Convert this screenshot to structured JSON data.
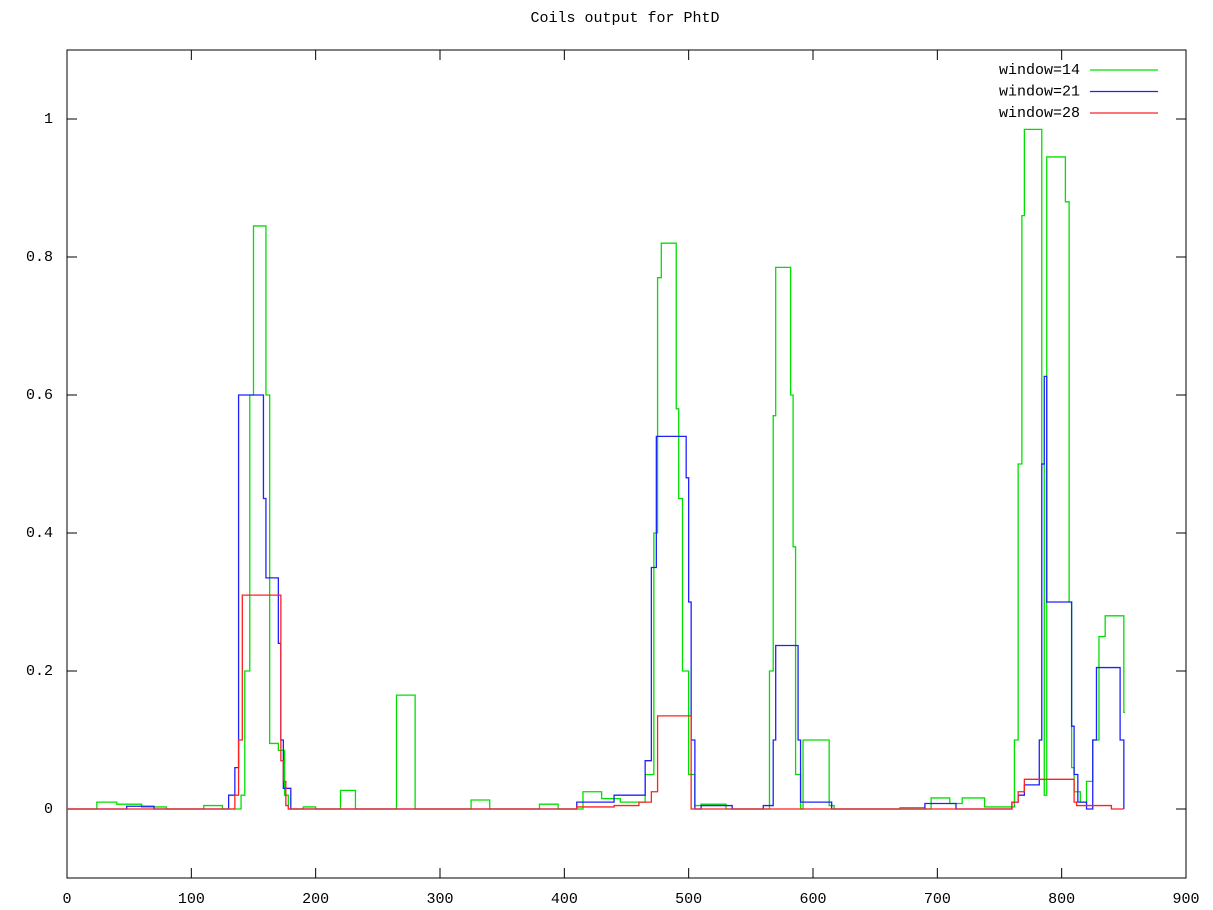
{
  "chart_data": {
    "type": "line",
    "title": "Coils output for PhtD",
    "step": "post",
    "xlim": [
      0,
      900
    ],
    "ylim": [
      -0.1,
      1.1
    ],
    "xticks": [
      0,
      100,
      200,
      300,
      400,
      500,
      600,
      700,
      800,
      900
    ],
    "yticks": [
      0,
      0.2,
      0.4,
      0.6,
      0.8,
      1
    ],
    "legend": "upper right",
    "series": [
      {
        "name": "window=14",
        "color": "#00e000",
        "x": [
          0,
          24,
          40,
          60,
          80,
          110,
          125,
          140,
          143,
          147,
          150,
          160,
          163,
          170,
          175,
          178,
          190,
          200,
          220,
          232,
          265,
          280,
          325,
          340,
          380,
          395,
          415,
          430,
          445,
          465,
          472,
          475,
          478,
          490,
          492,
          495,
          500,
          505,
          510,
          530,
          565,
          568,
          570,
          582,
          584,
          586,
          590,
          592,
          600,
          613,
          617,
          670,
          690,
          695,
          710,
          720,
          738,
          740,
          760,
          762,
          765,
          768,
          770,
          784,
          786,
          788,
          790,
          803,
          806,
          808,
          810,
          815,
          820,
          825,
          830,
          835,
          837,
          850,
          851
        ],
        "values": [
          0,
          0.01,
          0.007,
          0.003,
          0,
          0.005,
          0,
          0.02,
          0.2,
          0.6,
          0.845,
          0.6,
          0.095,
          0.085,
          0.02,
          0,
          0.003,
          0,
          0.027,
          0,
          0.165,
          0,
          0.013,
          0,
          0.007,
          0,
          0.025,
          0.015,
          0.01,
          0.05,
          0.4,
          0.77,
          0.82,
          0.58,
          0.45,
          0.2,
          0.05,
          0.005,
          0.007,
          0,
          0.2,
          0.57,
          0.785,
          0.6,
          0.38,
          0.05,
          0,
          0.1,
          0.1,
          0.005,
          0,
          0.002,
          0,
          0.016,
          0.008,
          0.016,
          0.003,
          0.003,
          0.003,
          0.1,
          0.5,
          0.86,
          0.985,
          0.5,
          0.02,
          0.945,
          0.945,
          0.88,
          0.3,
          0.06,
          0.025,
          0.01,
          0.04,
          0.1,
          0.25,
          0.28,
          0.28,
          0.14,
          0.14
        ]
      },
      {
        "name": "window=21",
        "color": "#2020ff",
        "x": [
          0,
          48,
          70,
          130,
          135,
          138,
          158,
          160,
          162,
          170,
          172,
          174,
          176,
          180,
          410,
          440,
          465,
          470,
          474,
          498,
          500,
          502,
          505,
          510,
          535,
          560,
          568,
          570,
          588,
          590,
          592,
          615,
          690,
          710,
          715,
          760,
          765,
          770,
          782,
          784,
          786,
          788,
          808,
          810,
          813,
          815,
          820,
          825,
          828,
          847,
          849,
          850
        ],
        "values": [
          0,
          0.004,
          0,
          0.02,
          0.06,
          0.6,
          0.45,
          0.335,
          0.335,
          0.24,
          0.1,
          0.03,
          0.03,
          0,
          0.01,
          0.02,
          0.07,
          0.35,
          0.54,
          0.48,
          0.3,
          0.1,
          0,
          0.005,
          0,
          0.005,
          0.1,
          0.237,
          0.1,
          0.01,
          0.01,
          0,
          0.008,
          0.008,
          0,
          0.01,
          0.02,
          0.035,
          0.1,
          0.5,
          0.627,
          0.3,
          0.12,
          0.05,
          0.01,
          0.01,
          0,
          0.1,
          0.205,
          0.1,
          0.1,
          0
        ]
      },
      {
        "name": "window=28",
        "color": "#ff2020",
        "x": [
          0,
          135,
          138,
          141,
          144,
          172,
          174,
          176,
          178,
          180,
          410,
          440,
          460,
          470,
          475,
          502,
          760,
          765,
          770,
          810,
          812,
          820,
          840,
          850
        ],
        "values": [
          0,
          0.02,
          0.1,
          0.31,
          0.31,
          0.07,
          0.04,
          0.005,
          0,
          0,
          0.003,
          0.005,
          0.01,
          0.025,
          0.135,
          0,
          0.01,
          0.025,
          0.043,
          0.01,
          0.005,
          0.005,
          0,
          0
        ]
      }
    ]
  }
}
